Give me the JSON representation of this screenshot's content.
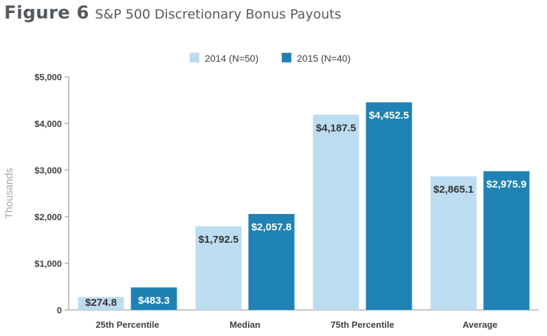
{
  "figure": {
    "label": "Figure 6",
    "title": "S&P 500 Discretionary Bonus Payouts"
  },
  "chart_data": {
    "type": "bar",
    "categories": [
      "25th Percentile",
      "Median",
      "75th Percentile",
      "Average"
    ],
    "series": [
      {
        "name": "2014 (N=50)",
        "values": [
          274.8,
          1792.5,
          4187.5,
          2865.1
        ],
        "labels": [
          "$274.8",
          "$1,792.5",
          "$4,187.5",
          "$2,865.1"
        ],
        "color": "#bcdcf0",
        "label_color": "#333333"
      },
      {
        "name": "2015 (N=40)",
        "values": [
          483.3,
          2057.8,
          4452.5,
          2975.9
        ],
        "labels": [
          "$483.3",
          "$2,057.8",
          "$4,452.5",
          "$2,975.9"
        ],
        "color": "#1f82b4",
        "label_color": "#ffffff"
      }
    ],
    "ylabel": "Thousands",
    "xlabel": "",
    "ylim": [
      0,
      5000
    ],
    "yticks": [
      {
        "value": 0,
        "label": "0"
      },
      {
        "value": 1000,
        "label": "$1,000"
      },
      {
        "value": 2000,
        "label": "$2,000"
      },
      {
        "value": 3000,
        "label": "$3,000"
      },
      {
        "value": 4000,
        "label": "$4,000"
      },
      {
        "value": 5000,
        "label": "$5,000"
      }
    ],
    "legend_position": "top",
    "grid": false
  }
}
